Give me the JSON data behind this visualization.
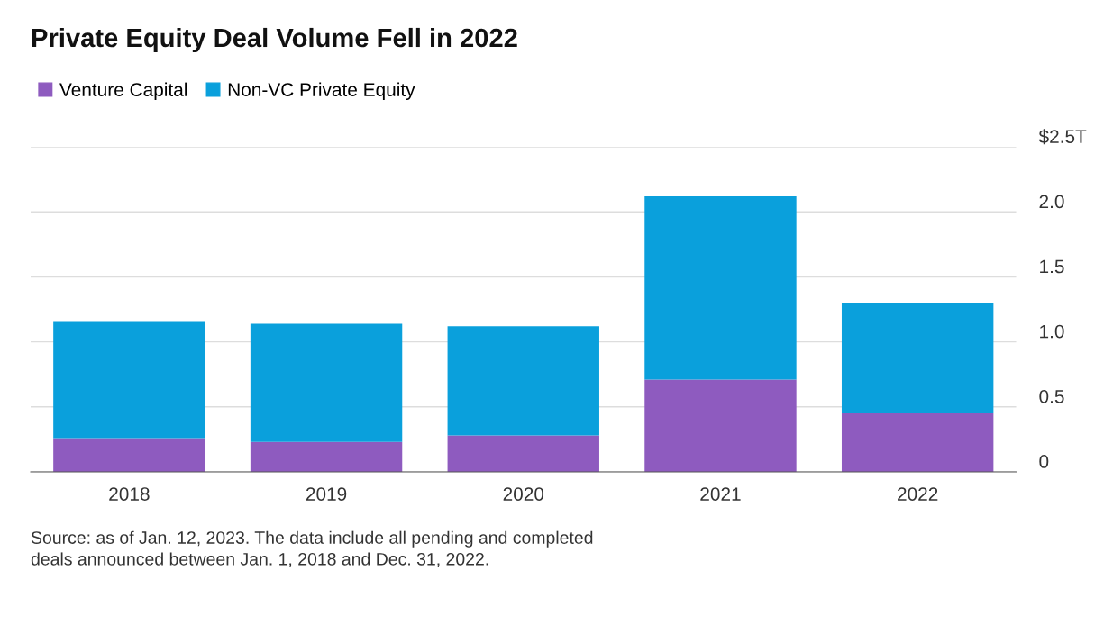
{
  "chart_data": {
    "type": "bar",
    "title": "Private Equity Deal Volume Fell in 2022",
    "categories": [
      "2018",
      "2019",
      "2020",
      "2021",
      "2022"
    ],
    "series": [
      {
        "name": "Venture Capital",
        "color": "#8e5bbf",
        "values": [
          0.26,
          0.23,
          0.28,
          0.71,
          0.45
        ]
      },
      {
        "name": "Non-VC Private Equity",
        "color": "#0aa0dc",
        "values": [
          0.9,
          0.91,
          0.84,
          1.41,
          0.85
        ]
      }
    ],
    "stacked": true,
    "ylim": [
      0,
      2.5
    ],
    "yticks": [
      0,
      0.5,
      {
        "value": 1.0,
        "label": "1.0"
      },
      1.5,
      {
        "value": 2.0,
        "label": "2.0"
      },
      {
        "value": 2.5,
        "label": "$2.5T"
      }
    ],
    "grid": "y",
    "legend": "top left",
    "annotations": [
      "Source: as of Jan. 12, 2023. The data include all pending and completed\ndeals announced between Jan. 1, 2018 and Dec. 31, 2022."
    ]
  }
}
